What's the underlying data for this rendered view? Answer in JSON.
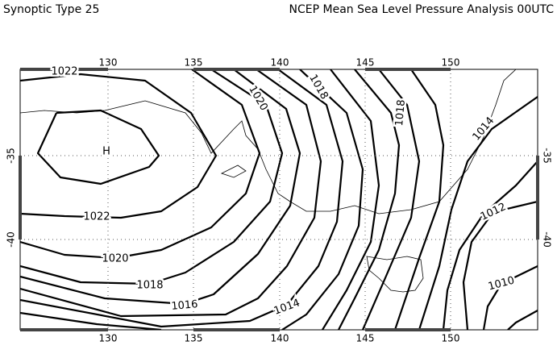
{
  "header": {
    "left": "Synoptic Type 25",
    "right": "NCEP Mean Sea Level Pressure Analysis 00UTC"
  },
  "map": {
    "lon_ticks": [
      130,
      135,
      140,
      145,
      150
    ],
    "lat_ticks": [
      -35,
      -40
    ],
    "high_label": "H",
    "contour_labels": [
      "1022",
      "1022",
      "1020",
      "1020",
      "1018",
      "1018",
      "1018",
      "1016",
      "1014",
      "1014",
      "1012",
      "1010"
    ]
  }
}
